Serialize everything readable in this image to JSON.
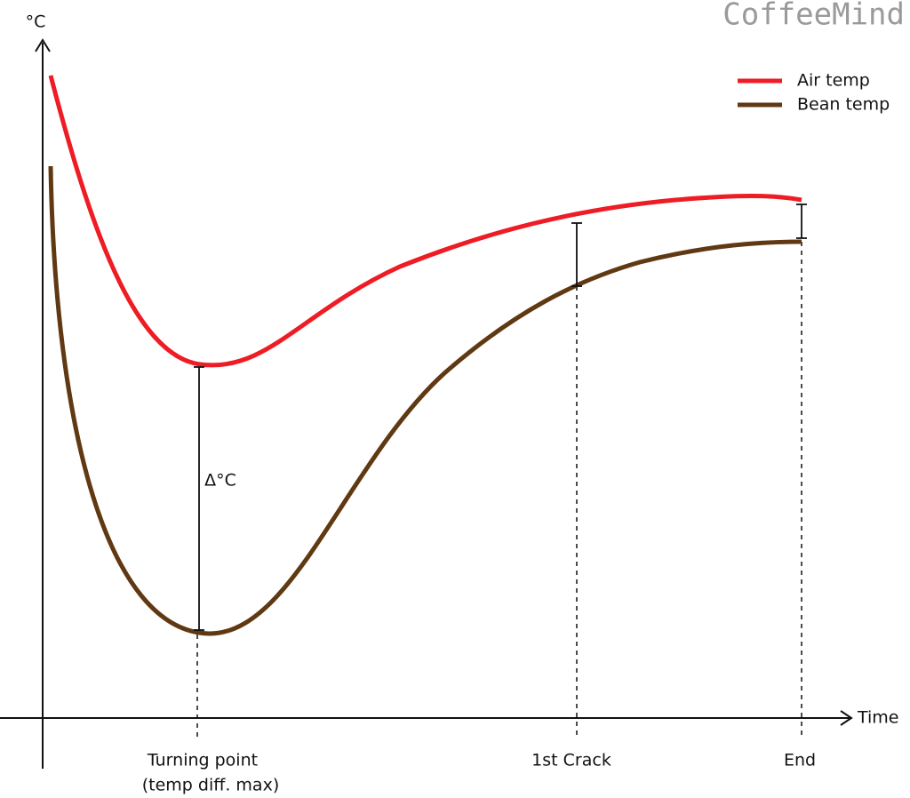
{
  "watermark": "CoffeeMind",
  "axes": {
    "y_label": "°C",
    "x_label": "Time"
  },
  "legend": [
    {
      "label": "Air temp"
    },
    {
      "label": "Bean temp"
    }
  ],
  "annotations": {
    "delta": "Δ°C"
  },
  "markers": [
    {
      "label": "Turning point",
      "sublabel": "(temp diff. max)"
    },
    {
      "label": "1st Crack"
    },
    {
      "label": "End"
    }
  ]
}
